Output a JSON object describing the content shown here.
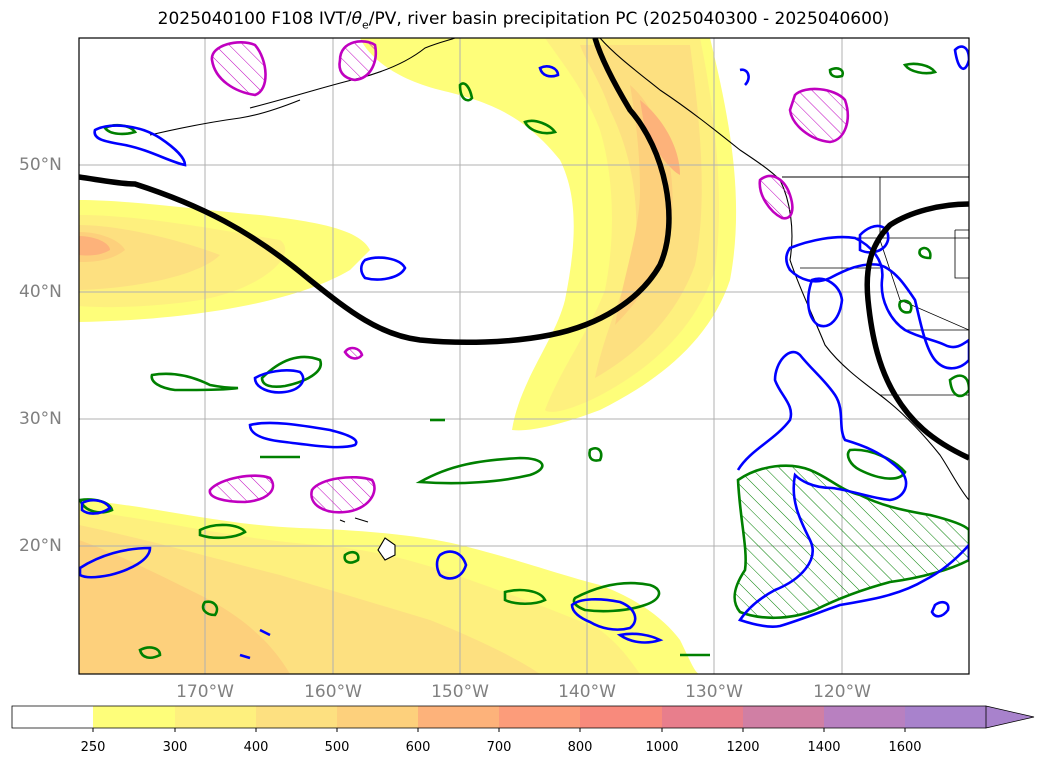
{
  "title": {
    "prefix": "2025040100 F108 IVT/",
    "theta": "θ",
    "theta_sub": "e",
    "suffix": "/PV, river basin precipitation PC (2025040300 - 2025040600)"
  },
  "lat_labels": [
    "50°N",
    "40°N",
    "30°N",
    "20°N"
  ],
  "lon_labels": [
    "170°W",
    "160°W",
    "150°W",
    "140°W",
    "130°W",
    "120°W"
  ],
  "colorbar": {
    "ticks": [
      "250",
      "300",
      "400",
      "500",
      "600",
      "700",
      "800",
      "1000",
      "1200",
      "1400",
      "1600"
    ],
    "colors": [
      "#ffffff",
      "#fefe7a",
      "#fef07e",
      "#fde080",
      "#fdd07c",
      "#fdb27a",
      "#fc9c7a",
      "#f88a7c",
      "#e87e8c",
      "#d07fa4",
      "#b880c0",
      "#a882cc"
    ]
  },
  "legend_colors": {
    "theta_e_contour": "#000000",
    "pv_contour": "#0000ff",
    "precip_contour": "#008000",
    "magenta_contour": "#c000c0"
  }
}
